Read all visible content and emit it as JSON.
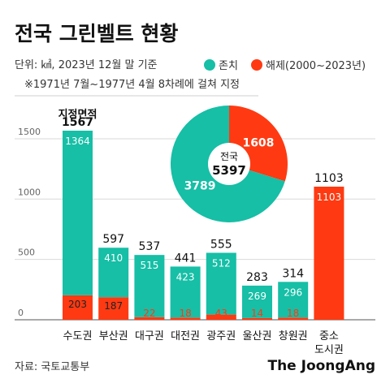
{
  "title": "전국 그린벨트 현황",
  "unit_note": "단위: ㎢, 2023년 12월 말 기준",
  "period_note": "※1971년 7월~1977년 4월 8차례에 걸쳐 지정",
  "legend": {
    "retained": "존치",
    "released": "해제(2000~2023년)"
  },
  "total_header": "지정면적",
  "colors": {
    "retained": "#16bfa6",
    "released": "#ff3a12",
    "axis": "#999999",
    "text": "#111111"
  },
  "chart_data": {
    "type": "bar",
    "stacked": true,
    "categories": [
      "수도권",
      "부산권",
      "대구권",
      "대전권",
      "광주권",
      "울산권",
      "창원권",
      "중소\n도시권"
    ],
    "series": [
      {
        "name": "존치",
        "values": [
          1364,
          410,
          515,
          423,
          512,
          269,
          296,
          0
        ]
      },
      {
        "name": "해제(2000~2023년)",
        "values": [
          203,
          187,
          22,
          18,
          43,
          14,
          18,
          1103
        ]
      }
    ],
    "totals": [
      1567,
      597,
      537,
      441,
      555,
      283,
      314,
      1103
    ],
    "yticks": [
      0,
      500,
      1000,
      1500
    ],
    "ylim": [
      0,
      1600
    ]
  },
  "pie": {
    "center_label": "전국",
    "total": 5397,
    "slices": [
      {
        "name": "존치",
        "value": 3789
      },
      {
        "name": "해제",
        "value": 1608
      }
    ]
  },
  "source": "자료: 국토교통부",
  "brand": "The JoongAng"
}
